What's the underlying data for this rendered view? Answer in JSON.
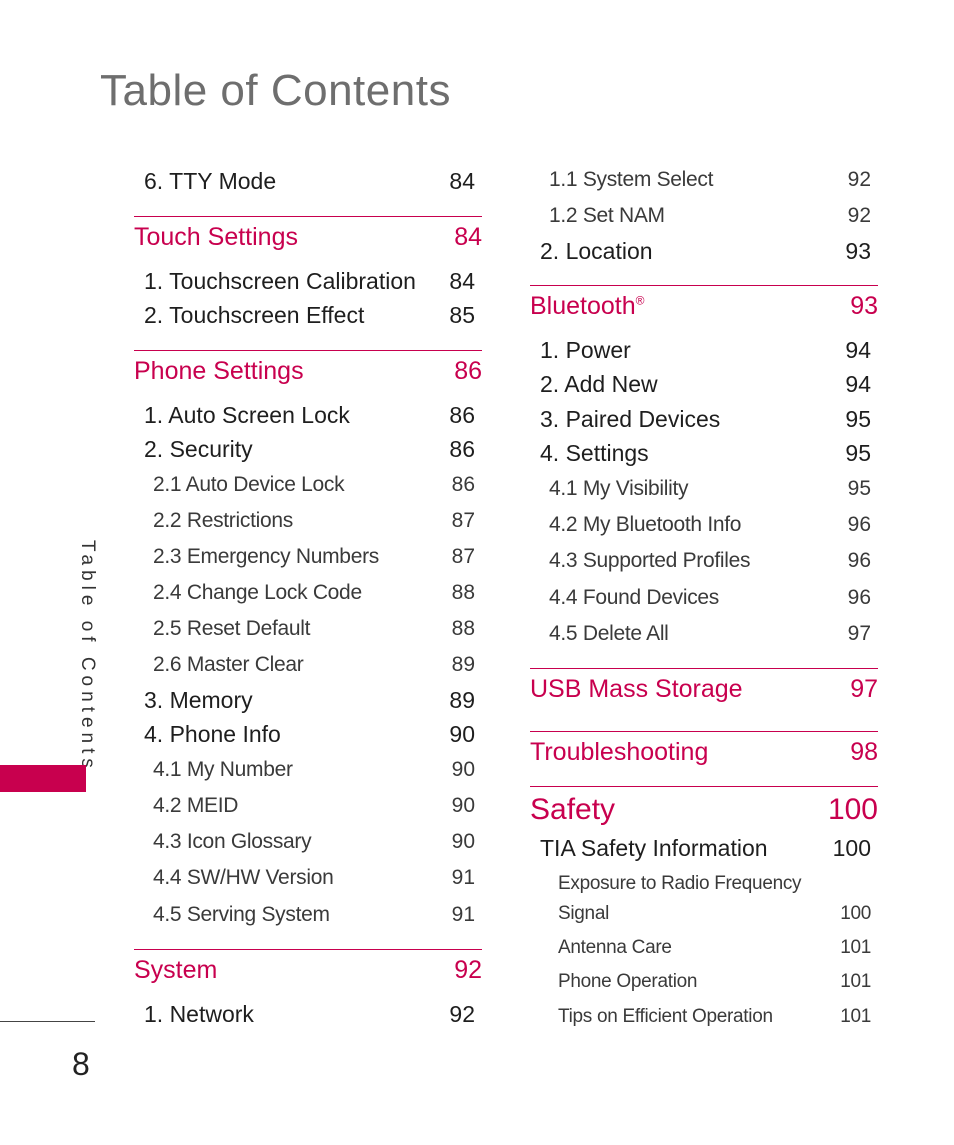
{
  "page": {
    "title": "Table of Contents",
    "side_label": "Table of Contents",
    "page_number": "8",
    "accent_color": "#c8004e"
  },
  "left": {
    "r0": {
      "label": "6. TTY Mode",
      "page": "84"
    },
    "touch": {
      "label": "Touch Settings",
      "page": "84"
    },
    "t1": {
      "label": "1. Touchscreen Calibration",
      "page": "84"
    },
    "t2": {
      "label": "2. Touchscreen Effect",
      "page": "85"
    },
    "phone": {
      "label": "Phone Settings",
      "page": "86"
    },
    "p1": {
      "label": "1. Auto Screen Lock",
      "page": "86"
    },
    "p2": {
      "label": "2. Security",
      "page": "86"
    },
    "p21": {
      "label": "2.1 Auto Device Lock",
      "page": "86"
    },
    "p22": {
      "label": "2.2 Restrictions",
      "page": "87"
    },
    "p23": {
      "label": "2.3 Emergency Numbers",
      "page": "87"
    },
    "p24": {
      "label": "2.4 Change Lock Code",
      "page": "88"
    },
    "p25": {
      "label": "2.5 Reset Default",
      "page": "88"
    },
    "p26": {
      "label": "2.6 Master Clear",
      "page": "89"
    },
    "p3": {
      "label": "3. Memory",
      "page": "89"
    },
    "p4": {
      "label": "4. Phone Info",
      "page": "90"
    },
    "p41": {
      "label": "4.1 My Number",
      "page": "90"
    },
    "p42": {
      "label": "4.2 MEID",
      "page": "90"
    },
    "p43": {
      "label": "4.3 Icon Glossary",
      "page": "90"
    },
    "p44": {
      "label": "4.4 SW/HW Version",
      "page": "91"
    },
    "p45": {
      "label": "4.5 Serving System",
      "page": "91"
    },
    "system": {
      "label": "System",
      "page": "92"
    },
    "s1": {
      "label": "1. Network",
      "page": "92"
    }
  },
  "right": {
    "s11": {
      "label": "1.1 System Select",
      "page": "92"
    },
    "s12": {
      "label": "1.2 Set NAM",
      "page": "92"
    },
    "s2": {
      "label": "2. Location",
      "page": "93"
    },
    "bluetooth": {
      "label": "Bluetooth",
      "mark": "®",
      "page": "93"
    },
    "b1": {
      "label": "1. Power",
      "page": "94"
    },
    "b2": {
      "label": "2. Add New",
      "page": "94"
    },
    "b3": {
      "label": "3. Paired Devices",
      "page": "95"
    },
    "b4": {
      "label": "4. Settings",
      "page": "95"
    },
    "b41": {
      "label": "4.1 My Visibility",
      "page": "95"
    },
    "b42": {
      "label": "4.2 My Bluetooth Info",
      "page": "96"
    },
    "b43": {
      "label": "4.3 Supported Profiles",
      "page": "96"
    },
    "b44": {
      "label": "4.4 Found Devices",
      "page": "96"
    },
    "b45": {
      "label": "4.5 Delete All",
      "page": "97"
    },
    "usb": {
      "label": "USB Mass Storage",
      "page": "97"
    },
    "trouble": {
      "label": "Troubleshooting",
      "page": "98"
    },
    "safety": {
      "label": "Safety",
      "page": "100"
    },
    "tia": {
      "label": "TIA Safety Information",
      "page": "100"
    },
    "e1a": {
      "label": "Exposure to Radio Frequency"
    },
    "e1b": {
      "label": "Signal",
      "page": "100"
    },
    "e2": {
      "label": "Antenna Care",
      "page": "101"
    },
    "e3": {
      "label": "Phone Operation",
      "page": "101"
    },
    "e4": {
      "label": "Tips on Efficient Operation",
      "page": "101"
    }
  }
}
